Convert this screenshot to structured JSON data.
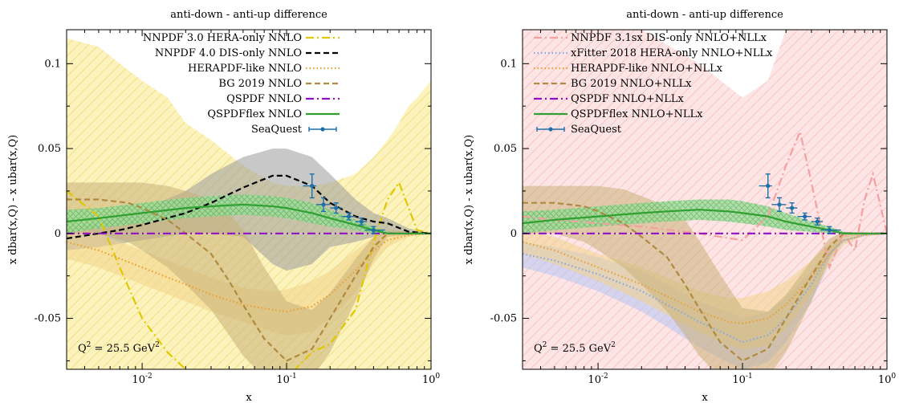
{
  "chart_data": [
    {
      "type": "line",
      "title": "anti-down - anti-up difference",
      "xlabel": "x",
      "ylabel": "x dbar(x,Q) - x ubar(x,Q)",
      "xscale": "log",
      "xlim": [
        0.003,
        1.0
      ],
      "ylim": [
        -0.08,
        0.12
      ],
      "xticks": [
        {
          "value": 0.01,
          "label": "10",
          "exp": "-2"
        },
        {
          "value": 0.1,
          "label": "10",
          "exp": "-1"
        },
        {
          "value": 1.0,
          "label": "10",
          "exp": "0"
        }
      ],
      "yticks": [
        {
          "value": -0.05,
          "label": "-0.05"
        },
        {
          "value": 0,
          "label": "0"
        },
        {
          "value": 0.05,
          "label": "0.05"
        },
        {
          "value": 0.1,
          "label": "0.1"
        }
      ],
      "grid": false,
      "legend_position": "top-right",
      "annotation": {
        "text": "Q",
        "sup1": "2",
        "mid": " = 25.5 GeV",
        "sup2": "2"
      },
      "series": [
        {
          "name": "NNPDF 3.0 HERA-only NNLO",
          "style": "dash-dot",
          "color": "#e0c800",
          "band_color": "#f5e27a",
          "band_style": "hatch",
          "x": [
            0.003,
            0.005,
            0.007,
            0.01,
            0.015,
            0.02,
            0.03,
            0.05,
            0.08,
            0.1,
            0.15,
            0.2,
            0.3,
            0.4,
            0.5,
            0.6,
            0.7,
            0.8,
            1.0
          ],
          "y": [
            0.025,
            0.01,
            -0.02,
            -0.05,
            -0.07,
            -0.08,
            -0.09,
            -0.09,
            -0.09,
            -0.085,
            -0.07,
            -0.065,
            -0.045,
            -0.005,
            0.02,
            0.03,
            0.015,
            0.002,
            0.0
          ],
          "lower": [
            -0.09,
            -0.09,
            -0.09,
            -0.09,
            -0.09,
            -0.09,
            -0.09,
            -0.09,
            -0.09,
            -0.09,
            -0.09,
            -0.09,
            -0.09,
            -0.09,
            -0.09,
            -0.09,
            -0.09,
            -0.09,
            -0.09
          ],
          "upper": [
            0.115,
            0.11,
            0.1,
            0.09,
            0.08,
            0.065,
            0.055,
            0.04,
            0.03,
            0.028,
            0.028,
            0.03,
            0.035,
            0.045,
            0.055,
            0.065,
            0.075,
            0.08,
            0.09
          ]
        },
        {
          "name": "NNPDF 4.0 DIS-only NNLO",
          "style": "dashed",
          "color": "#000000",
          "band_color": "#9a9a9a",
          "band_style": "solid",
          "x": [
            0.003,
            0.005,
            0.007,
            0.01,
            0.02,
            0.03,
            0.05,
            0.08,
            0.1,
            0.15,
            0.2,
            0.3,
            0.4,
            0.5,
            0.7,
            1.0
          ],
          "y": [
            -0.003,
            0.0,
            0.002,
            0.005,
            0.012,
            0.018,
            0.027,
            0.034,
            0.034,
            0.028,
            0.018,
            0.01,
            0.007,
            0.006,
            0.001,
            0.0
          ],
          "lower": [
            -0.01,
            -0.008,
            -0.006,
            -0.004,
            0.0,
            0.0,
            -0.002,
            -0.018,
            -0.022,
            -0.018,
            -0.008,
            -0.005,
            -0.002,
            0.0,
            -0.001,
            0.0
          ],
          "upper": [
            0.003,
            0.006,
            0.01,
            0.014,
            0.025,
            0.035,
            0.045,
            0.05,
            0.05,
            0.045,
            0.035,
            0.02,
            0.012,
            0.009,
            0.003,
            0.0
          ]
        },
        {
          "name": "HERAPDF-like NNLO",
          "style": "dotted",
          "color": "#e8a030",
          "band_color": "#f3d48a",
          "band_style": "solid",
          "x": [
            0.003,
            0.005,
            0.01,
            0.02,
            0.03,
            0.05,
            0.08,
            0.1,
            0.15,
            0.2,
            0.3,
            0.4,
            0.5,
            0.7,
            1.0
          ],
          "y": [
            -0.005,
            -0.01,
            -0.02,
            -0.03,
            -0.036,
            -0.042,
            -0.045,
            -0.046,
            -0.043,
            -0.036,
            -0.022,
            -0.01,
            -0.004,
            -0.001,
            0.0
          ],
          "lower": [
            -0.015,
            -0.02,
            -0.03,
            -0.04,
            -0.046,
            -0.052,
            -0.058,
            -0.06,
            -0.058,
            -0.05,
            -0.035,
            -0.018,
            -0.008,
            -0.002,
            0.0
          ],
          "upper": [
            0.005,
            0.0,
            -0.01,
            -0.02,
            -0.026,
            -0.032,
            -0.034,
            -0.033,
            -0.028,
            -0.022,
            -0.01,
            -0.002,
            0.0,
            0.0,
            0.0
          ]
        },
        {
          "name": "BG 2019 NNLO",
          "style": "dashed",
          "color": "#b08a40",
          "band_color": "#c8b078",
          "band_style": "solid",
          "x": [
            0.003,
            0.005,
            0.008,
            0.01,
            0.015,
            0.02,
            0.03,
            0.04,
            0.05,
            0.07,
            0.1,
            0.15,
            0.2,
            0.3,
            0.4,
            0.5,
            1.0
          ],
          "y": [
            0.02,
            0.02,
            0.018,
            0.015,
            0.008,
            0.0,
            -0.012,
            -0.028,
            -0.042,
            -0.062,
            -0.075,
            -0.068,
            -0.05,
            -0.025,
            -0.008,
            0.0,
            0.0
          ],
          "lower": [
            0.0,
            0.0,
            -0.005,
            -0.01,
            -0.02,
            -0.03,
            -0.045,
            -0.06,
            -0.072,
            -0.085,
            -0.09,
            -0.085,
            -0.07,
            -0.04,
            -0.015,
            -0.002,
            0.0
          ],
          "upper": [
            0.03,
            0.03,
            0.03,
            0.03,
            0.028,
            0.025,
            0.02,
            0.012,
            0.002,
            -0.02,
            -0.04,
            -0.045,
            -0.035,
            -0.015,
            -0.002,
            0.002,
            0.0
          ]
        },
        {
          "name": "QSPDF NNLO",
          "style": "dash-dot",
          "color": "#9010c8",
          "x": [
            0.003,
            1.0
          ],
          "y": [
            0.0,
            0.0
          ]
        },
        {
          "name": "QSPDFflex NNLO",
          "style": "solid",
          "color": "#30a030",
          "band_color": "#7dd07d",
          "band_style": "crosshatch",
          "x": [
            0.003,
            0.005,
            0.01,
            0.02,
            0.03,
            0.05,
            0.08,
            0.1,
            0.15,
            0.2,
            0.3,
            0.4,
            0.5,
            0.7,
            1.0
          ],
          "y": [
            0.007,
            0.009,
            0.012,
            0.015,
            0.016,
            0.017,
            0.016,
            0.015,
            0.012,
            0.009,
            0.005,
            0.002,
            0.0,
            0.0,
            0.0
          ],
          "lower": [
            0.0,
            0.003,
            0.006,
            0.009,
            0.01,
            0.011,
            0.01,
            0.009,
            0.006,
            0.004,
            0.002,
            0.0,
            0.0,
            0.0,
            0.0
          ],
          "upper": [
            0.014,
            0.015,
            0.018,
            0.021,
            0.022,
            0.023,
            0.022,
            0.021,
            0.018,
            0.014,
            0.008,
            0.004,
            0.001,
            0.0,
            0.0
          ]
        }
      ],
      "points": {
        "name": "SeaQuest",
        "color": "#1f6fa8",
        "x": [
          0.15,
          0.18,
          0.22,
          0.27,
          0.33,
          0.4
        ],
        "y": [
          0.028,
          0.017,
          0.015,
          0.01,
          0.007,
          0.002
        ],
        "yerr": [
          0.007,
          0.004,
          0.003,
          0.002,
          0.002,
          0.002
        ],
        "xlow": [
          0.13,
          0.16,
          0.2,
          0.24,
          0.3,
          0.35
        ],
        "xhigh": [
          0.16,
          0.2,
          0.24,
          0.3,
          0.36,
          0.48
        ]
      }
    },
    {
      "type": "line",
      "title": "anti-down - anti-up difference",
      "xlabel": "x",
      "ylabel": "x dbar(x,Q) - x ubar(x,Q)",
      "xscale": "log",
      "xlim": [
        0.003,
        1.0
      ],
      "ylim": [
        -0.08,
        0.12
      ],
      "xticks": [
        {
          "value": 0.01,
          "label": "10",
          "exp": "-2"
        },
        {
          "value": 0.1,
          "label": "10",
          "exp": "-1"
        },
        {
          "value": 1.0,
          "label": "10",
          "exp": "0"
        }
      ],
      "yticks": [
        {
          "value": -0.05,
          "label": "-0.05"
        },
        {
          "value": 0,
          "label": "0"
        },
        {
          "value": 0.05,
          "label": "0.05"
        },
        {
          "value": 0.1,
          "label": "0.1"
        }
      ],
      "grid": false,
      "legend_position": "top-right",
      "annotation": {
        "text": "Q",
        "sup1": "2",
        "mid": " = 25.5 GeV",
        "sup2": "2"
      },
      "series": [
        {
          "name": "NNPDF 3.1sx DIS-only NNLO+NLLx",
          "style": "dash-dot",
          "color": "#f4a0a0",
          "band_color": "#fbd0d0",
          "band_style": "hatch",
          "x": [
            0.003,
            0.005,
            0.01,
            0.02,
            0.05,
            0.1,
            0.15,
            0.2,
            0.25,
            0.3,
            0.4,
            0.5,
            0.6,
            0.7,
            0.8,
            1.0
          ],
          "y": [
            0.01,
            0.008,
            0.006,
            0.004,
            0.0,
            -0.004,
            0.01,
            0.04,
            0.06,
            0.03,
            -0.02,
            0.0,
            -0.01,
            0.02,
            0.035,
            0.0
          ],
          "lower": [
            -0.09,
            -0.09,
            -0.09,
            -0.09,
            -0.09,
            -0.09,
            -0.09,
            -0.09,
            -0.09,
            -0.09,
            -0.09,
            -0.09,
            -0.09,
            -0.09,
            -0.09,
            -0.09
          ],
          "upper": [
            0.12,
            0.12,
            0.12,
            0.12,
            0.1,
            0.08,
            0.09,
            0.12,
            0.12,
            0.12,
            0.12,
            0.12,
            0.12,
            0.12,
            0.12,
            0.12
          ]
        },
        {
          "name": "xFitter 2018 HERA-only NNLO+NLLx",
          "style": "dotted",
          "color": "#80a8e8",
          "band_color": "#b4c4f4",
          "band_style": "solid",
          "x": [
            0.003,
            0.005,
            0.01,
            0.02,
            0.03,
            0.05,
            0.08,
            0.1,
            0.15,
            0.2,
            0.3,
            0.4,
            0.5,
            0.7,
            1.0
          ],
          "y": [
            -0.012,
            -0.016,
            -0.024,
            -0.034,
            -0.042,
            -0.052,
            -0.06,
            -0.064,
            -0.06,
            -0.05,
            -0.03,
            -0.012,
            -0.004,
            -0.001,
            0.0
          ],
          "lower": [
            -0.02,
            -0.025,
            -0.034,
            -0.046,
            -0.055,
            -0.067,
            -0.076,
            -0.08,
            -0.076,
            -0.064,
            -0.04,
            -0.018,
            -0.006,
            -0.001,
            0.0
          ],
          "upper": [
            -0.005,
            -0.008,
            -0.014,
            -0.022,
            -0.03,
            -0.04,
            -0.046,
            -0.05,
            -0.046,
            -0.038,
            -0.022,
            -0.008,
            -0.002,
            0.0,
            0.0
          ]
        },
        {
          "name": "HERAPDF-like NNLO+NLLx",
          "style": "dotted",
          "color": "#e8a030",
          "band_color": "#f3d48a",
          "band_style": "solid",
          "x": [
            0.003,
            0.005,
            0.01,
            0.02,
            0.03,
            0.05,
            0.08,
            0.1,
            0.15,
            0.2,
            0.3,
            0.4,
            0.5,
            0.7,
            1.0
          ],
          "y": [
            -0.005,
            -0.01,
            -0.02,
            -0.03,
            -0.037,
            -0.046,
            -0.052,
            -0.053,
            -0.05,
            -0.042,
            -0.026,
            -0.012,
            -0.004,
            -0.001,
            0.0
          ],
          "lower": [
            -0.012,
            -0.018,
            -0.028,
            -0.04,
            -0.048,
            -0.058,
            -0.066,
            -0.068,
            -0.066,
            -0.056,
            -0.036,
            -0.018,
            -0.007,
            -0.001,
            0.0
          ],
          "upper": [
            0.002,
            -0.002,
            -0.012,
            -0.02,
            -0.026,
            -0.034,
            -0.038,
            -0.038,
            -0.034,
            -0.028,
            -0.016,
            -0.006,
            -0.001,
            0.0,
            0.0
          ]
        },
        {
          "name": "BG 2019 NNLO+NLLx",
          "style": "dashed",
          "color": "#b08a40",
          "band_color": "#c8b078",
          "band_style": "solid",
          "x": [
            0.003,
            0.005,
            0.008,
            0.01,
            0.015,
            0.02,
            0.03,
            0.04,
            0.05,
            0.07,
            0.1,
            0.15,
            0.2,
            0.3,
            0.4,
            0.5,
            1.0
          ],
          "y": [
            0.018,
            0.018,
            0.016,
            0.013,
            0.006,
            -0.002,
            -0.014,
            -0.03,
            -0.044,
            -0.064,
            -0.075,
            -0.068,
            -0.05,
            -0.025,
            -0.008,
            0.0,
            0.0
          ],
          "lower": [
            0.0,
            0.0,
            -0.005,
            -0.01,
            -0.02,
            -0.03,
            -0.046,
            -0.06,
            -0.072,
            -0.085,
            -0.09,
            -0.085,
            -0.07,
            -0.04,
            -0.015,
            -0.002,
            0.0
          ],
          "upper": [
            0.028,
            0.028,
            0.028,
            0.028,
            0.026,
            0.022,
            0.016,
            0.008,
            -0.004,
            -0.024,
            -0.044,
            -0.046,
            -0.036,
            -0.016,
            -0.003,
            0.001,
            0.0
          ]
        },
        {
          "name": "QSPDF NNLO+NLLx",
          "style": "dash-dot",
          "color": "#9010c8",
          "x": [
            0.003,
            1.0
          ],
          "y": [
            0.0,
            0.0
          ]
        },
        {
          "name": "QSPDFflex NNLO+NLLx",
          "style": "solid",
          "color": "#30a030",
          "band_color": "#7dd07d",
          "band_style": "crosshatch",
          "x": [
            0.003,
            0.005,
            0.01,
            0.02,
            0.03,
            0.05,
            0.08,
            0.1,
            0.15,
            0.2,
            0.3,
            0.4,
            0.5,
            0.7,
            1.0
          ],
          "y": [
            0.006,
            0.008,
            0.01,
            0.012,
            0.013,
            0.014,
            0.013,
            0.012,
            0.01,
            0.007,
            0.004,
            0.002,
            0.0,
            0.0,
            0.0
          ],
          "lower": [
            0.0,
            0.002,
            0.004,
            0.006,
            0.007,
            0.008,
            0.007,
            0.006,
            0.004,
            0.002,
            0.001,
            0.0,
            0.0,
            0.0,
            0.0
          ],
          "upper": [
            0.013,
            0.014,
            0.016,
            0.018,
            0.019,
            0.02,
            0.02,
            0.019,
            0.016,
            0.012,
            0.007,
            0.004,
            0.001,
            0.0,
            0.0
          ]
        }
      ],
      "points": {
        "name": "SeaQuest",
        "color": "#1f6fa8",
        "x": [
          0.15,
          0.18,
          0.22,
          0.27,
          0.33,
          0.4
        ],
        "y": [
          0.028,
          0.017,
          0.015,
          0.01,
          0.007,
          0.002
        ],
        "yerr": [
          0.007,
          0.004,
          0.003,
          0.002,
          0.002,
          0.002
        ],
        "xlow": [
          0.13,
          0.16,
          0.2,
          0.24,
          0.3,
          0.35
        ],
        "xhigh": [
          0.16,
          0.2,
          0.24,
          0.3,
          0.36,
          0.48
        ]
      }
    }
  ]
}
